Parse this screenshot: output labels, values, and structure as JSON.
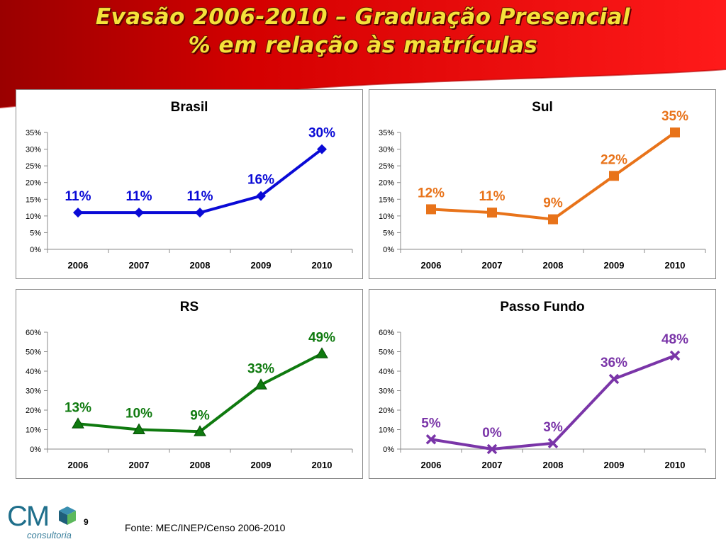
{
  "slide": {
    "title_line1": "Evasão 2006-2010 – Graduação Presencial",
    "title_line2": "% em relação às matrículas",
    "source": "Fonte: MEC/INEP/Censo 2006-2010",
    "page_number": "9",
    "logo_text": "CM",
    "logo_subtext": "consultoria"
  },
  "colors": {
    "banner_red": "#d90000",
    "banner_dark": "#9a0000",
    "title_yellow": "#f5e23a"
  },
  "chart_data": [
    {
      "type": "line",
      "title": "Brasil",
      "categories": [
        "2006",
        "2007",
        "2008",
        "2009",
        "2010"
      ],
      "values": [
        11,
        11,
        11,
        16,
        30
      ],
      "data_labels": [
        "11%",
        "11%",
        "11%",
        "16%",
        "30%"
      ],
      "ylim": [
        0,
        35
      ],
      "yticks": [
        "0%",
        "5%",
        "10%",
        "15%",
        "20%",
        "25%",
        "30%",
        "35%"
      ],
      "color": "#0a0ad6",
      "marker": "diamond",
      "grid": false,
      "legend": "none"
    },
    {
      "type": "line",
      "title": "Sul",
      "categories": [
        "2006",
        "2007",
        "2008",
        "2009",
        "2010"
      ],
      "values": [
        12,
        11,
        9,
        22,
        35
      ],
      "data_labels": [
        "12%",
        "11%",
        "9%",
        "22%",
        "35%"
      ],
      "ylim": [
        0,
        35
      ],
      "yticks": [
        "0%",
        "5%",
        "10%",
        "15%",
        "20%",
        "25%",
        "30%",
        "35%"
      ],
      "color": "#e8731a",
      "marker": "square",
      "grid": false,
      "legend": "none"
    },
    {
      "type": "line",
      "title": "RS",
      "categories": [
        "2006",
        "2007",
        "2008",
        "2009",
        "2010"
      ],
      "values": [
        13,
        10,
        9,
        33,
        49
      ],
      "data_labels": [
        "13%",
        "10%",
        "9%",
        "33%",
        "49%"
      ],
      "ylim": [
        0,
        60
      ],
      "yticks": [
        "0%",
        "10%",
        "20%",
        "30%",
        "40%",
        "50%",
        "60%"
      ],
      "color": "#0f7a0f",
      "marker": "triangle",
      "grid": false,
      "legend": "none"
    },
    {
      "type": "line",
      "title": "Passo Fundo",
      "categories": [
        "2006",
        "2007",
        "2008",
        "2009",
        "2010"
      ],
      "values": [
        5,
        0,
        3,
        36,
        48
      ],
      "data_labels": [
        "5%",
        "0%",
        "3%",
        "36%",
        "48%"
      ],
      "ylim": [
        0,
        60
      ],
      "yticks": [
        "0%",
        "10%",
        "20%",
        "30%",
        "40%",
        "50%",
        "60%"
      ],
      "color": "#7a35a8",
      "marker": "x",
      "grid": false,
      "legend": "none"
    }
  ]
}
